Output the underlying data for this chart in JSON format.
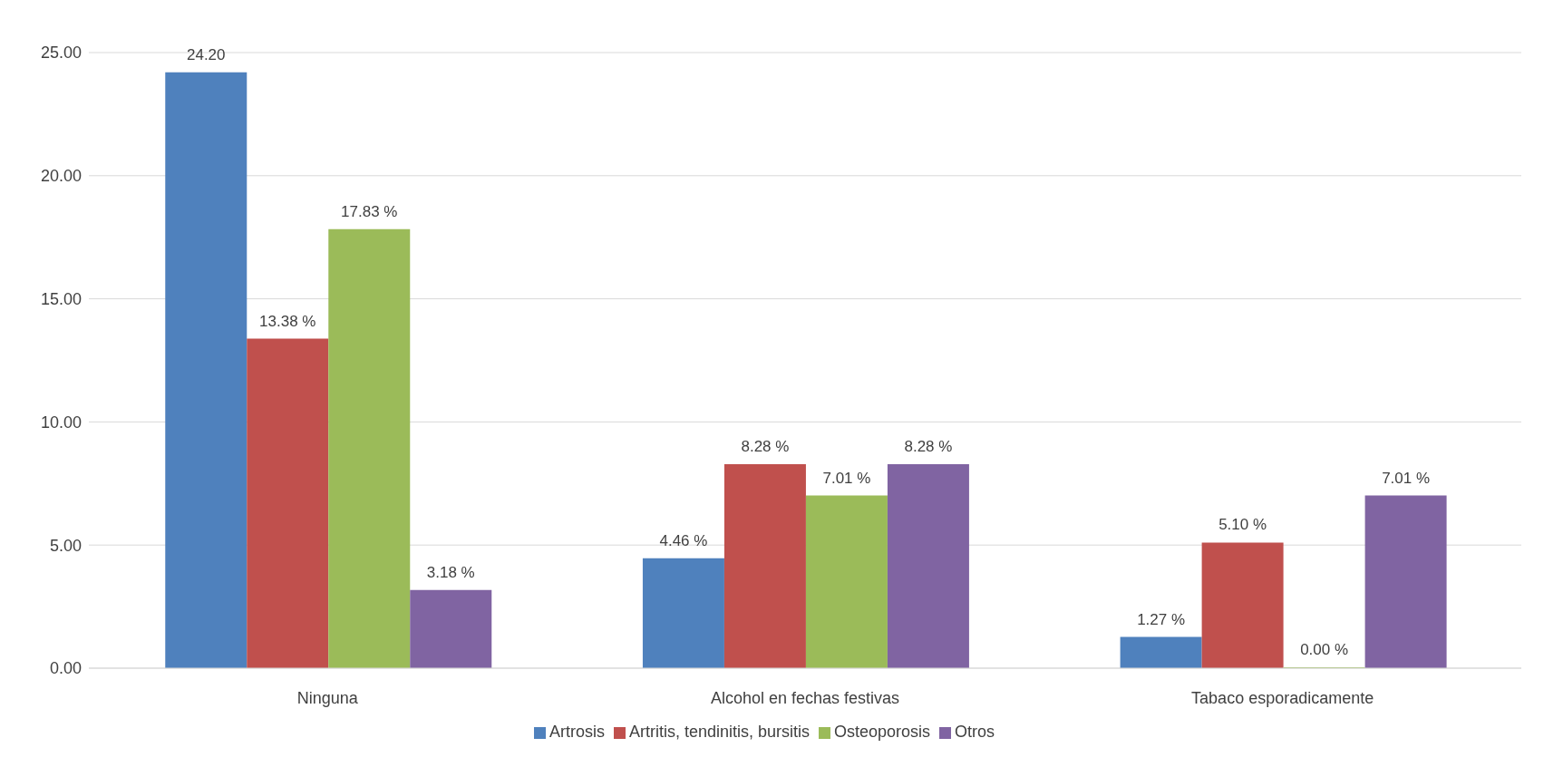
{
  "chart_data": {
    "type": "bar",
    "categories": [
      "Ninguna",
      "Alcohol en fechas festivas",
      "Tabaco esporadicamente"
    ],
    "series": [
      {
        "name": "Artrosis",
        "color": "#4f81bd",
        "values": [
          24.2,
          4.46,
          1.27
        ],
        "value_labels": [
          "24.20",
          "4.46 %",
          "1.27 %"
        ]
      },
      {
        "name": "Artritis, tendinitis, bursitis",
        "color": "#c0504d",
        "values": [
          13.38,
          8.28,
          5.1
        ],
        "value_labels": [
          "13.38 %",
          "8.28 %",
          "5.10 %"
        ]
      },
      {
        "name": "Osteoporosis",
        "color": "#9bbb59",
        "values": [
          17.83,
          7.01,
          0.0
        ],
        "value_labels": [
          "17.83 %",
          "7.01 %",
          "0.00 %"
        ]
      },
      {
        "name": "Otros",
        "color": "#8064a2",
        "values": [
          3.18,
          8.28,
          7.01
        ],
        "value_labels": [
          "3.18 %",
          "8.28 %",
          "7.01 %"
        ]
      }
    ],
    "ylim": [
      0,
      25
    ],
    "yticks": [
      {
        "value": 0,
        "label": "0.00"
      },
      {
        "value": 5,
        "label": "5.00"
      },
      {
        "value": 10,
        "label": "10.00"
      },
      {
        "value": 15,
        "label": "15.00"
      },
      {
        "value": 20,
        "label": "20.00"
      },
      {
        "value": 25,
        "label": "25.00"
      }
    ],
    "grid": "y",
    "legend": "bottom"
  }
}
